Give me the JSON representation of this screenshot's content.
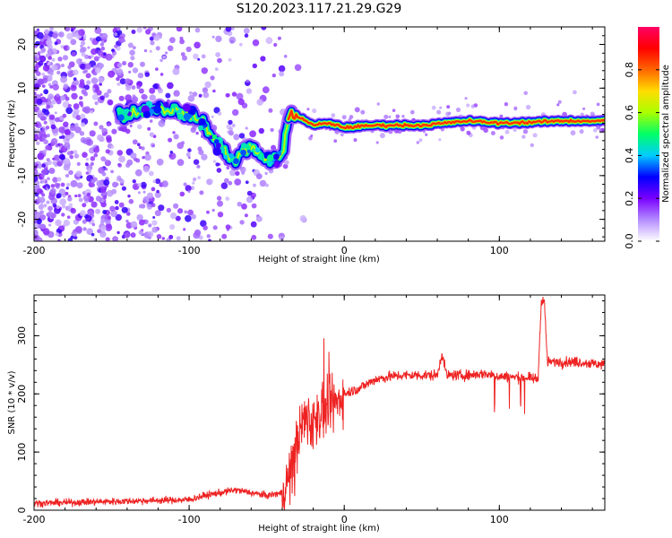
{
  "title": "S120.2023.117.21.29.G29",
  "chart_data": [
    {
      "type": "heatmap",
      "xlabel": "Height of straight line (km)",
      "ylabel": "Frequency (Hz)",
      "xlim": [
        -200,
        168
      ],
      "ylim": [
        -25,
        24
      ],
      "xticks": [
        -200,
        -100,
        0,
        100
      ],
      "yticks": [
        -20,
        -10,
        0,
        10,
        20
      ],
      "colorbar": {
        "label": "Normalized spectral amplitude",
        "range": [
          0.0,
          1.0
        ],
        "ticks": [
          0.0,
          0.2,
          0.4,
          0.6,
          0.8
        ],
        "colormap": [
          "#ffffff",
          "#b48cff",
          "#7a00ff",
          "#0000ff",
          "#00ccff",
          "#00ff66",
          "#aaff00",
          "#ffdd00",
          "#ff6600",
          "#ff0000",
          "#ff0066"
        ]
      },
      "series": [
        {
          "values": [
            {
              "x": -140,
              "y": 4.0
            },
            {
              "x": -125,
              "y": 5.5
            },
            {
              "x": -110,
              "y": 5.0
            },
            {
              "x": -100,
              "y": 4.0
            },
            {
              "x": -90,
              "y": 2.0
            },
            {
              "x": -85,
              "y": -1.5
            },
            {
              "x": -80,
              "y": -3.5
            },
            {
              "x": -75,
              "y": -5.0
            },
            {
              "x": -70,
              "y": -7.0
            },
            {
              "x": -65,
              "y": -4.0
            },
            {
              "x": -60,
              "y": -3.5
            },
            {
              "x": -55,
              "y": -5.5
            },
            {
              "x": -50,
              "y": -6.0
            },
            {
              "x": -45,
              "y": -6.5
            },
            {
              "x": -40,
              "y": -5.5
            },
            {
              "x": -35,
              "y": 4.5
            },
            {
              "x": -30,
              "y": 3.5
            },
            {
              "x": -20,
              "y": 1.5
            },
            {
              "x": -10,
              "y": 2.0
            },
            {
              "x": 0,
              "y": 1.0
            },
            {
              "x": 20,
              "y": 1.5
            },
            {
              "x": 50,
              "y": 1.5
            },
            {
              "x": 80,
              "y": 2.5
            },
            {
              "x": 100,
              "y": 2.0
            },
            {
              "x": 120,
              "y": 2.2
            },
            {
              "x": 140,
              "y": 2.5
            },
            {
              "x": 168,
              "y": 2.5
            }
          ]
        }
      ]
    },
    {
      "type": "line",
      "xlabel": "Height of straight line (km)",
      "ylabel": "SNR (10 * v/v)",
      "xlim": [
        -200,
        168
      ],
      "ylim": [
        0,
        370
      ],
      "xticks": [
        -200,
        -100,
        0,
        100
      ],
      "yticks": [
        0,
        100,
        200,
        300
      ],
      "color": "#ee2222",
      "series": [
        {
          "x": [
            -200,
            -150,
            -100,
            -90,
            -80,
            -70,
            -60,
            -50,
            -40,
            -35,
            -30,
            -25,
            -20,
            -15,
            -10,
            -5,
            0,
            10,
            20,
            30,
            40,
            60,
            63,
            66,
            80,
            90,
            100,
            115,
            125,
            127,
            129,
            131,
            135,
            150,
            168
          ],
          "values": [
            12,
            15,
            18,
            25,
            30,
            35,
            30,
            25,
            30,
            60,
            120,
            160,
            150,
            170,
            175,
            185,
            200,
            210,
            225,
            230,
            232,
            232,
            270,
            232,
            232,
            235,
            230,
            228,
            225,
            360,
            360,
            255,
            255,
            255,
            250
          ]
        }
      ]
    }
  ]
}
